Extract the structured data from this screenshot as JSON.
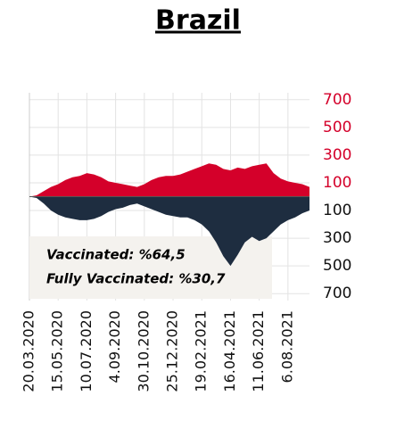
{
  "chart_data": {
    "type": "mirrored_area",
    "title": "Brazil",
    "annotations": [
      "Vaccinated:  %64,5",
      "Fully Vaccinated: %30,7"
    ],
    "categories": [
      "20.03.2020",
      null,
      null,
      null,
      "15.05.2020",
      null,
      null,
      null,
      "10.07.2020",
      null,
      null,
      null,
      "4.09.2020",
      null,
      null,
      null,
      "30.10.2020",
      null,
      null,
      null,
      "25.12.2020",
      null,
      null,
      null,
      "19.02.2021",
      null,
      null,
      null,
      "16.04.2021",
      null,
      null,
      null,
      "11.06.2021",
      null,
      null,
      null,
      "6.08.2021",
      null,
      null,
      null
    ],
    "series": [
      {
        "color": "#d4002a",
        "values": [
          0,
          10,
          40,
          70,
          90,
          120,
          140,
          150,
          170,
          160,
          140,
          110,
          100,
          90,
          80,
          70,
          90,
          120,
          140,
          150,
          150,
          160,
          180,
          200,
          220,
          240,
          230,
          200,
          190,
          210,
          200,
          220,
          230,
          240,
          170,
          130,
          110,
          100,
          90,
          70
        ]
      },
      {
        "color": "#1e2d40",
        "values": [
          0,
          -10,
          -50,
          -100,
          -130,
          -150,
          -160,
          -170,
          -170,
          -160,
          -140,
          -110,
          -90,
          -80,
          -60,
          -50,
          -70,
          -90,
          -110,
          -130,
          -140,
          -150,
          -150,
          -170,
          -200,
          -250,
          -330,
          -430,
          -500,
          -420,
          -330,
          -290,
          -320,
          -300,
          -250,
          -200,
          -170,
          -150,
          -120,
          -100
        ]
      }
    ],
    "ylim": [
      -750,
      750
    ],
    "yticks": [
      700,
      500,
      300,
      100,
      {
        "value": -100,
        "label": "100"
      },
      {
        "value": -300,
        "label": "300"
      },
      {
        "value": -500,
        "label": "500"
      },
      {
        "value": -700,
        "label": "700"
      }
    ],
    "grid": true
  }
}
